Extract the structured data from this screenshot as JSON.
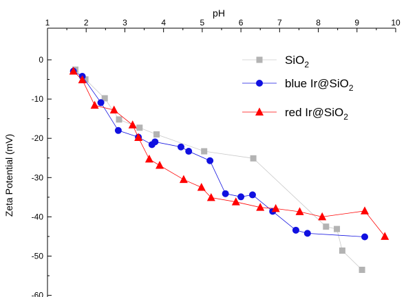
{
  "chart_data": {
    "type": "scatter",
    "xlabel": "pH",
    "ylabel": "Zeta Potential (mV)",
    "xlim": [
      1,
      10
    ],
    "ylim": [
      -60,
      5
    ],
    "x_ticks": [
      "1",
      "2",
      "3",
      "4",
      "5",
      "6",
      "7",
      "8",
      "9",
      "10"
    ],
    "y_ticks": [
      "0",
      "-10",
      "-20",
      "-30",
      "-40",
      "-50",
      "-60"
    ],
    "x_axis_position": "top",
    "grid": false,
    "legend_position": "top-right",
    "series": [
      {
        "name_parts": [
          "SiO",
          "2",
          ""
        ],
        "marker": "square",
        "color": "#b3b3b3",
        "x": [
          1.72,
          1.98,
          2.48,
          2.85,
          3.38,
          3.82,
          5.05,
          6.32,
          8.2,
          8.48,
          8.62,
          9.13
        ],
        "y": [
          -2.5,
          -5.0,
          -9.8,
          -15.2,
          -17.3,
          -19.0,
          -23.3,
          -25.1,
          -42.5,
          -43.1,
          -48.6,
          -53.5
        ]
      },
      {
        "name_parts": [
          "blue Ir@SiO",
          "2",
          ""
        ],
        "marker": "circle",
        "color": "#1010e0",
        "x": [
          1.67,
          1.9,
          2.38,
          2.83,
          3.35,
          3.7,
          3.78,
          4.45,
          4.65,
          5.2,
          5.6,
          6.0,
          6.3,
          6.82,
          7.42,
          7.72,
          9.2
        ],
        "y": [
          -2.9,
          -4.2,
          -10.9,
          -18.0,
          -19.7,
          -21.6,
          -20.9,
          -22.2,
          -23.3,
          -25.7,
          -34.1,
          -34.9,
          -34.4,
          -38.6,
          -43.4,
          -44.2,
          -45.1
        ],
        "note_order": "connected in listed order"
      },
      {
        "name_parts": [
          "red Ir@SiO",
          "2",
          ""
        ],
        "marker": "triangle",
        "color": "#ff0000",
        "x": [
          1.67,
          1.9,
          2.22,
          2.72,
          3.2,
          3.35,
          3.63,
          3.9,
          4.52,
          4.98,
          5.23,
          5.87,
          6.5,
          6.9,
          7.52,
          8.1,
          9.2,
          9.72
        ],
        "y": [
          -2.9,
          -5.1,
          -11.6,
          -12.8,
          -16.6,
          -19.8,
          -25.3,
          -26.9,
          -30.5,
          -32.5,
          -35.1,
          -36.2,
          -37.6,
          -37.9,
          -38.7,
          -40.0,
          -38.5,
          -45.0
        ]
      }
    ]
  }
}
